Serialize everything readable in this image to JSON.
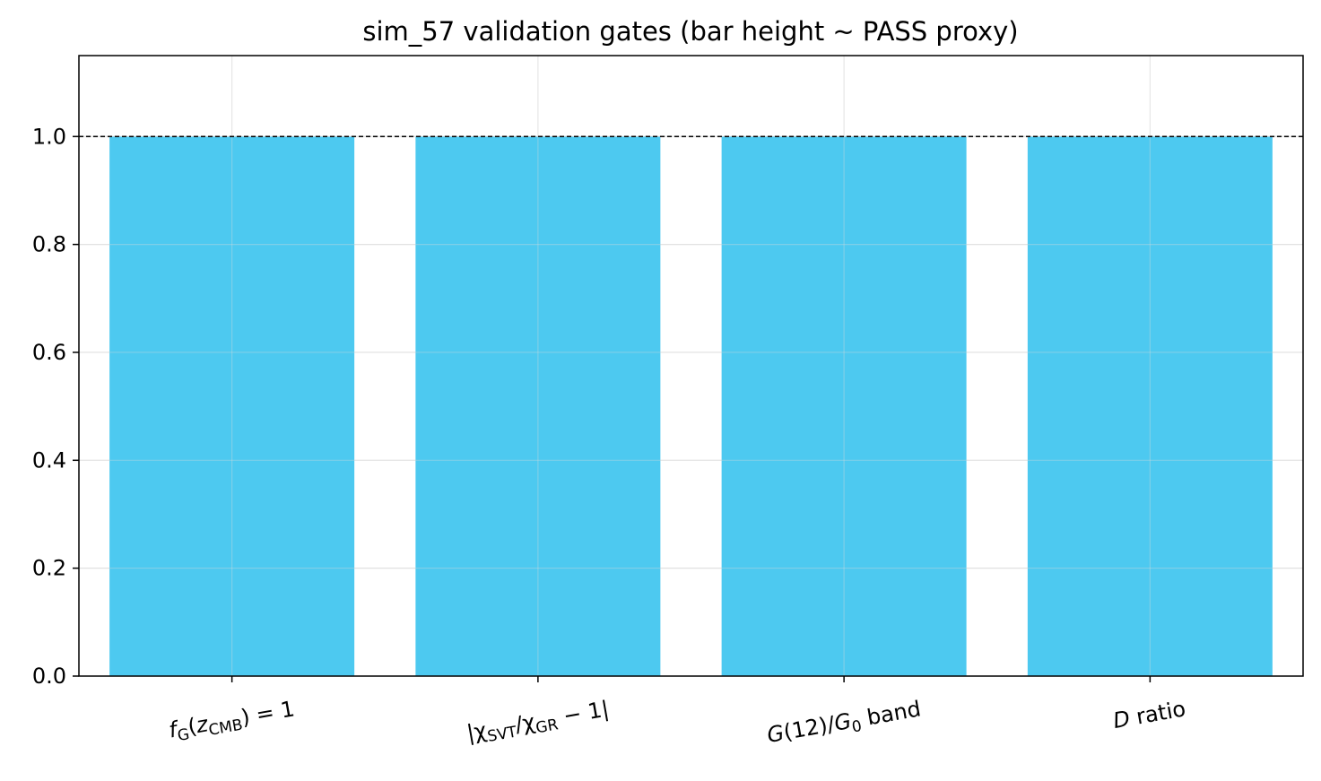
{
  "chart_data": {
    "type": "bar",
    "title": "sim_57 validation gates (bar height ~ PASS proxy)",
    "xlabel": "",
    "ylabel": "",
    "categories": [
      {
        "parts": [
          [
            "f",
            "i"
          ],
          [
            "G",
            "sub-i"
          ],
          [
            "(",
            ""
          ],
          [
            "z",
            "i"
          ],
          [
            "CMB",
            "sub"
          ],
          [
            ") = 1",
            ""
          ]
        ]
      },
      {
        "parts": [
          [
            "|χ",
            ""
          ],
          [
            "SVT",
            "sub"
          ],
          [
            "/χ",
            ""
          ],
          [
            "GR",
            "sub"
          ],
          [
            " − 1|",
            ""
          ]
        ]
      },
      {
        "parts": [
          [
            "G",
            "i"
          ],
          [
            "(12)/",
            ""
          ],
          [
            "G",
            "i"
          ],
          [
            "0",
            "sub"
          ],
          [
            " band",
            ""
          ]
        ]
      },
      {
        "parts": [
          [
            "D",
            "i"
          ],
          [
            " ratio",
            ""
          ]
        ]
      }
    ],
    "values": [
      1.0,
      1.0,
      1.0,
      1.0
    ],
    "ylim": [
      0,
      1.15
    ],
    "yticks": [
      "0.0",
      "0.2",
      "0.4",
      "0.6",
      "0.8",
      "1.0"
    ],
    "reference_line": 1.0,
    "grid": true,
    "bar_color": "#4dc9f0",
    "grid_color": "#e6e6e6"
  }
}
